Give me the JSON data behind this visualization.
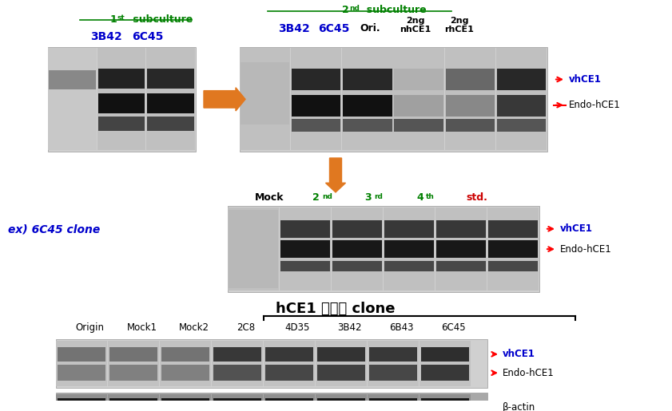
{
  "bg_color": "#ffffff",
  "title_color": "#000000",
  "green_color": "#008000",
  "blue_color": "#0000cc",
  "red_color": "#ff0000",
  "orange_color": "#e07820",
  "black_color": "#000000",
  "panel1_label": "1st subculture",
  "panel1_sublabels": [
    "3B42",
    "6C45"
  ],
  "panel2_label": "2nd subculture",
  "panel2_sublabels": [
    "3B42",
    "6C45",
    "Ori.",
    "2ng\nnhCE1",
    "2ng\nrhCE1"
  ],
  "panel2_line1": "2ng",
  "panel2_line2": "nhCE1",
  "panel3_prefix": "ex) 6C45 clone",
  "panel3_sublabels": [
    "Mock",
    "2nd",
    "3rd",
    "4th",
    "std."
  ],
  "panel3_colors": [
    "#000000",
    "#008000",
    "#008000",
    "#008000",
    "#ff0000"
  ],
  "bottom_title": "hCE1 과발현 clone",
  "bottom_labels": [
    "Origin",
    "Mock1",
    "Mock2",
    "2C8",
    "4D35",
    "3B42",
    "6B43",
    "6C45"
  ],
  "label_vhCE1": "vhCE1",
  "label_endo": "Endo-hCE1",
  "label_actin": "β-actin"
}
